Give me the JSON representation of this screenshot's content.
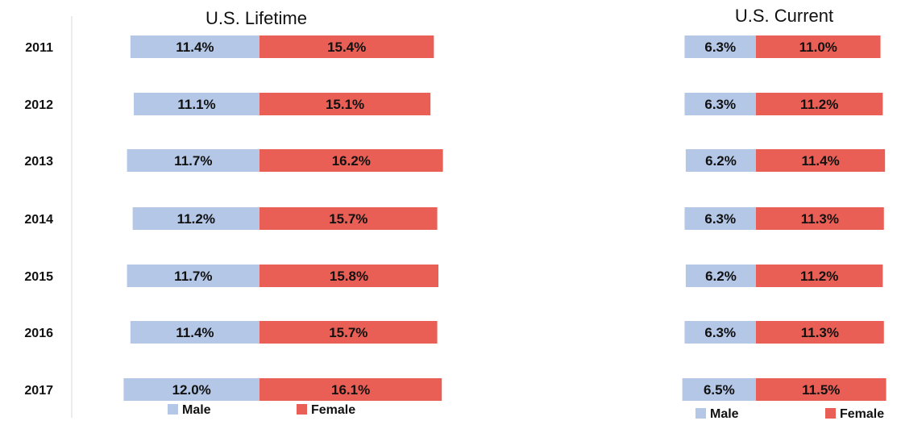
{
  "chart_data": [
    {
      "type": "bar",
      "orientation": "horizontal-diverging",
      "title": "U.S. Lifetime",
      "categories": [
        "2011",
        "2012",
        "2013",
        "2014",
        "2015",
        "2016",
        "2017"
      ],
      "series": [
        {
          "name": "Male",
          "values": [
            11.4,
            11.1,
            11.7,
            11.2,
            11.7,
            11.4,
            12.0
          ],
          "labels": [
            "11.4%",
            "11.1%",
            "11.7%",
            "11.2%",
            "11.7%",
            "11.4%",
            "12.0%"
          ],
          "color": "#b4c7e7"
        },
        {
          "name": "Female",
          "values": [
            15.4,
            15.1,
            16.2,
            15.7,
            15.8,
            15.7,
            16.1
          ],
          "labels": [
            "15.4%",
            "15.1%",
            "16.2%",
            "15.7%",
            "15.8%",
            "15.7%",
            "16.1%"
          ],
          "color": "#ea5f55"
        }
      ],
      "legend": "bottom"
    },
    {
      "type": "bar",
      "orientation": "horizontal-diverging",
      "title": "U.S. Current",
      "categories": [
        "2011",
        "2012",
        "2013",
        "2014",
        "2015",
        "2016",
        "2017"
      ],
      "series": [
        {
          "name": "Male",
          "values": [
            6.3,
            6.3,
            6.2,
            6.3,
            6.2,
            6.3,
            6.5
          ],
          "labels": [
            "6.3%",
            "6.3%",
            "6.2%",
            "6.3%",
            "6.2%",
            "6.3%",
            "6.5%"
          ],
          "color": "#b4c7e7"
        },
        {
          "name": "Female",
          "values": [
            11.0,
            11.2,
            11.4,
            11.3,
            11.2,
            11.3,
            11.5
          ],
          "labels": [
            "11.0%",
            "11.2%",
            "11.4%",
            "11.3%",
            "11.2%",
            "11.3%",
            "11.5%"
          ],
          "color": "#ea5f55"
        }
      ],
      "legend": "bottom"
    }
  ]
}
